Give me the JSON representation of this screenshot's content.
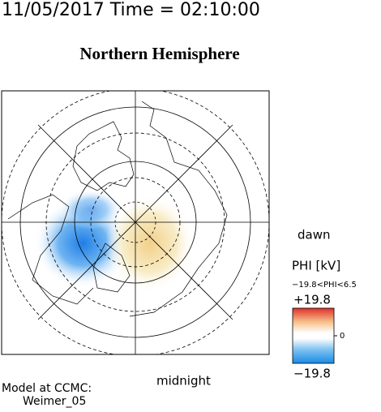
{
  "header": {
    "timestamp": "11/05/2017 Time = 02:10:00",
    "title": "Northern Hemisphere"
  },
  "map": {
    "dawn_label": "dawn",
    "midnight_label": "midnight"
  },
  "colorbar": {
    "title": "PHI [kV]",
    "range_note": "−19.8<PHI<6.5",
    "top_label": "+19.8",
    "middle_label": "0",
    "bottom_label": "−19.8"
  },
  "footer": {
    "line1": "Model at CCMC:",
    "line2": "Weimer_05"
  }
}
